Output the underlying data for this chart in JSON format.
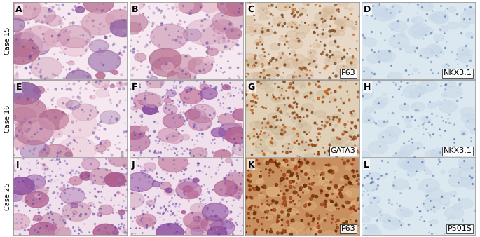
{
  "rows": 3,
  "cols": 4,
  "panel_labels": [
    "A",
    "B",
    "C",
    "D",
    "E",
    "F",
    "G",
    "H",
    "I",
    "J",
    "K",
    "L"
  ],
  "row_labels": [
    "Case 15",
    "Case 16",
    "Case 25"
  ],
  "inset_labels": [
    [
      null,
      null,
      "P63",
      "NKX3.1"
    ],
    [
      null,
      null,
      "GATA3",
      "NKX3.1"
    ],
    [
      null,
      null,
      "P63",
      "P501S"
    ]
  ],
  "bg_colors": {
    "A": "#d4b8c8",
    "B": "#e8d0e0",
    "C": "#c8a090",
    "D": "#c8d4e0",
    "E": "#c8b8d0",
    "F": "#d8c8d8",
    "G": "#c8a070",
    "H": "#c8d0e0",
    "I": "#c8b8d8",
    "J": "#d0c0d0",
    "K": "#b87840",
    "L": "#c0c8d8"
  },
  "figure_bg": "#f0f0f0",
  "border_color": "#000000",
  "label_fontsize": 8,
  "panel_label_fontsize": 9,
  "row_label_fontsize": 7
}
